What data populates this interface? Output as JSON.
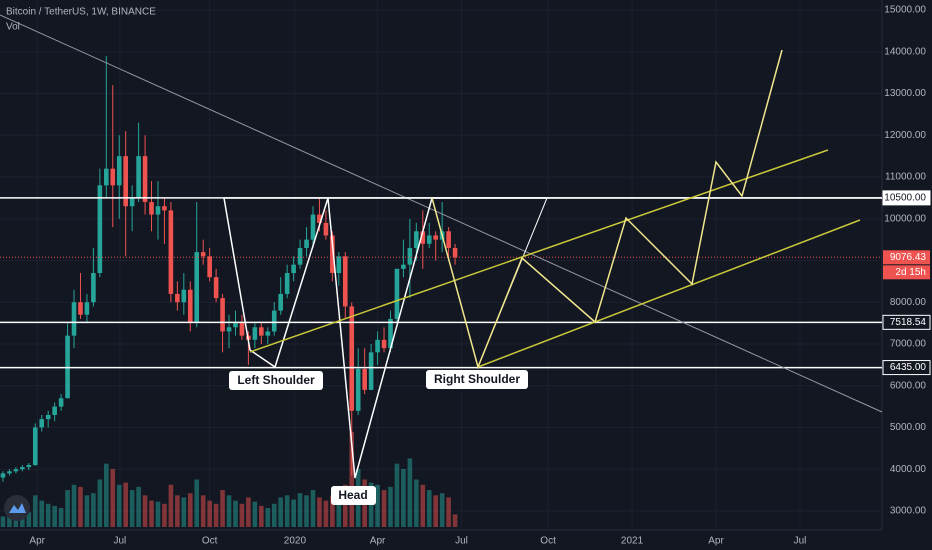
{
  "chart_data": {
    "type": "candlestick",
    "title": "Bitcoin / TetherUS, 1W, BINANCE",
    "volume_label": "Vol",
    "up_color": "#26a69a",
    "down_color": "#ef5350",
    "x": [
      0,
      1,
      2,
      3,
      4,
      5,
      6,
      7,
      8,
      9,
      10,
      11,
      12,
      13,
      14,
      15,
      16,
      17,
      18,
      19,
      20,
      21,
      22,
      23,
      24,
      25,
      26,
      27,
      28,
      29,
      30,
      31,
      32,
      33,
      34,
      35,
      36,
      37,
      38,
      39,
      40,
      41,
      42,
      43,
      44,
      45,
      46,
      47,
      48,
      49,
      50,
      51,
      52,
      53,
      54,
      55,
      56,
      57,
      58,
      59,
      60,
      61,
      62,
      63,
      64,
      65,
      66,
      67,
      68,
      69,
      70
    ],
    "open": [
      3800,
      3900,
      3950,
      4000,
      4050,
      4100,
      5000,
      5200,
      5300,
      5500,
      5700,
      7200,
      8000,
      7700,
      8000,
      8700,
      10800,
      11200,
      10800,
      11500,
      10300,
      10500,
      11500,
      10400,
      10100,
      10300,
      10200,
      8200,
      8000,
      8300,
      7500,
      9200,
      9100,
      8600,
      8100,
      7300,
      7400,
      7500,
      7200,
      7100,
      7400,
      7200,
      7300,
      7800,
      8200,
      8700,
      8900,
      9300,
      9500,
      10100,
      9900,
      9600,
      8700,
      9100,
      7900,
      5400,
      6400,
      5900,
      6800,
      7100,
      6900,
      7600,
      8800,
      8900,
      9300,
      9700,
      9400,
      9600,
      9500,
      9700,
      9300
    ],
    "high": [
      3950,
      4000,
      4050,
      4100,
      4150,
      5100,
      5300,
      5400,
      5600,
      5800,
      7500,
      8300,
      8700,
      8200,
      9300,
      11200,
      13900,
      13200,
      12000,
      12100,
      10800,
      12300,
      12000,
      10900,
      10900,
      10500,
      10400,
      8500,
      8700,
      8500,
      10400,
      9500,
      9300,
      8800,
      8200,
      7700,
      7800,
      7700,
      7300,
      7500,
      7500,
      7400,
      8000,
      8600,
      8900,
      9100,
      9500,
      9800,
      10300,
      10500,
      10200,
      9700,
      9200,
      9200,
      8000,
      6900,
      6900,
      7000,
      7300,
      7400,
      7800,
      8800,
      9500,
      10000,
      9900,
      10200,
      9900,
      9700,
      10400,
      9800,
      9400
    ],
    "low": [
      3700,
      3850,
      3900,
      3950,
      3980,
      4080,
      4900,
      5000,
      5150,
      5400,
      5700,
      6900,
      7600,
      7500,
      7900,
      8600,
      10500,
      9800,
      10000,
      9100,
      9700,
      10400,
      10100,
      9700,
      9500,
      9400,
      8000,
      7800,
      7700,
      7300,
      7400,
      8900,
      8500,
      8000,
      6800,
      6900,
      7200,
      7100,
      6500,
      6900,
      7000,
      7000,
      7200,
      7700,
      8100,
      8500,
      8800,
      9100,
      9300,
      9700,
      9500,
      8500,
      8400,
      7600,
      3850,
      5300,
      5800,
      5900,
      6500,
      6800,
      6800,
      7500,
      8600,
      8100,
      9000,
      8800,
      9300,
      9000,
      9200,
      9000,
      8900
    ],
    "close": [
      3900,
      3950,
      4000,
      4050,
      4100,
      5000,
      5200,
      5300,
      5500,
      5700,
      7200,
      8000,
      7700,
      8000,
      8700,
      10800,
      11200,
      10800,
      11500,
      10300,
      10500,
      11500,
      10400,
      10100,
      10300,
      10200,
      8200,
      8000,
      8300,
      7500,
      9200,
      9100,
      8600,
      8100,
      7300,
      7400,
      7500,
      7200,
      7100,
      7400,
      7200,
      7300,
      7800,
      8200,
      8700,
      8900,
      9300,
      9500,
      10100,
      9900,
      9600,
      8700,
      9100,
      7900,
      5400,
      6400,
      5900,
      6800,
      7100,
      6900,
      7600,
      8800,
      8900,
      9300,
      9700,
      9400,
      9600,
      9500,
      9700,
      9300,
      9076.43
    ],
    "volume": [
      10,
      12,
      11,
      13,
      14,
      30,
      25,
      22,
      20,
      18,
      35,
      40,
      38,
      30,
      32,
      45,
      60,
      55,
      40,
      42,
      35,
      38,
      30,
      25,
      24,
      22,
      40,
      30,
      28,
      32,
      45,
      30,
      25,
      22,
      35,
      30,
      25,
      22,
      28,
      24,
      20,
      18,
      22,
      28,
      30,
      26,
      32,
      30,
      35,
      28,
      25,
      30,
      28,
      40,
      90,
      55,
      45,
      42,
      40,
      35,
      38,
      60,
      55,
      65,
      45,
      40,
      35,
      30,
      32,
      28,
      12
    ],
    "xlim": [
      -0.46,
      136.1
    ],
    "ylim": [
      2065,
      15240
    ],
    "xticks": [
      {
        "value": 5.3,
        "label": "Apr"
      },
      {
        "value": 18.1,
        "label": "Jul"
      },
      {
        "value": 32,
        "label": "Oct"
      },
      {
        "value": 45.2,
        "label": "2020"
      },
      {
        "value": 58,
        "label": "Apr"
      },
      {
        "value": 71,
        "label": "Jul"
      },
      {
        "value": 84.4,
        "label": "Oct"
      },
      {
        "value": 97.4,
        "label": "2021"
      },
      {
        "value": 110.4,
        "label": "Apr"
      },
      {
        "value": 123.4,
        "label": "Jul"
      }
    ],
    "yticks": [
      {
        "value": 3000,
        "label": "3000.00"
      },
      {
        "value": 4000,
        "label": "4000.00"
      },
      {
        "value": 5000,
        "label": "5000.00"
      },
      {
        "value": 6000,
        "label": "6000.00"
      },
      {
        "value": 7000,
        "label": "7000.00"
      },
      {
        "value": 8000,
        "label": "8000.00"
      },
      {
        "value": 9000,
        "label": "9000.00"
      },
      {
        "value": 10000,
        "label": "10000.00"
      },
      {
        "value": 11000,
        "label": "11000.00"
      },
      {
        "value": 12000,
        "label": "12000.00"
      },
      {
        "value": 13000,
        "label": "13000.00"
      },
      {
        "value": 14000,
        "label": "14000.00"
      },
      {
        "value": 15000,
        "label": "15000.00"
      }
    ],
    "price_lines": [
      {
        "value": 10500,
        "label": "10500.00",
        "color": "#ffffff"
      },
      {
        "value": 7518.54,
        "label": "7518.54",
        "color": "#ffffff"
      },
      {
        "value": 6435,
        "label": "6435.00",
        "color": "#ffffff"
      }
    ],
    "last_price": 9076.43,
    "countdown": "2d 15h",
    "annotations": [
      "Left Shoulder",
      "Head",
      "Right Shoulder"
    ]
  }
}
